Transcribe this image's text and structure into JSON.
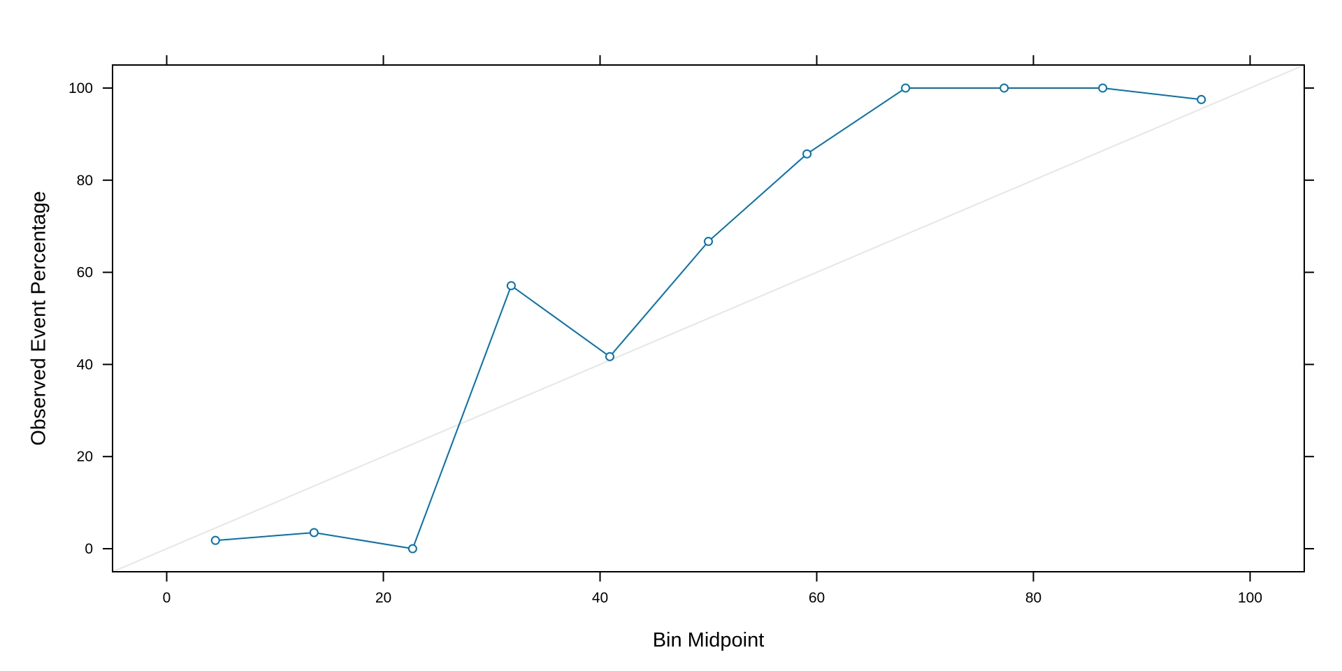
{
  "chart_data": {
    "type": "line",
    "title": "",
    "xlabel": "Bin Midpoint",
    "ylabel": "Observed Event Percentage",
    "xlim": [
      -5,
      105
    ],
    "ylim": [
      -5,
      105
    ],
    "x_ticks": [
      "0",
      "20",
      "40",
      "60",
      "80",
      "100"
    ],
    "y_ticks": [
      "0",
      "20",
      "40",
      "60",
      "80",
      "100"
    ],
    "grid": false,
    "legend": "none",
    "reference_line": {
      "from": [
        -5,
        -5
      ],
      "to": [
        105,
        105
      ],
      "color": "#e6e6e6"
    },
    "series": [
      {
        "color": "#0072b2",
        "marker": "open-circle",
        "x": [
          4.5,
          13.6,
          22.7,
          31.8,
          40.9,
          50.0,
          59.1,
          68.2,
          77.3,
          86.4,
          95.5
        ],
        "y": [
          1.8,
          3.5,
          0.0,
          57.1,
          41.7,
          66.7,
          85.7,
          100.0,
          100.0,
          100.0,
          97.5
        ]
      }
    ]
  }
}
